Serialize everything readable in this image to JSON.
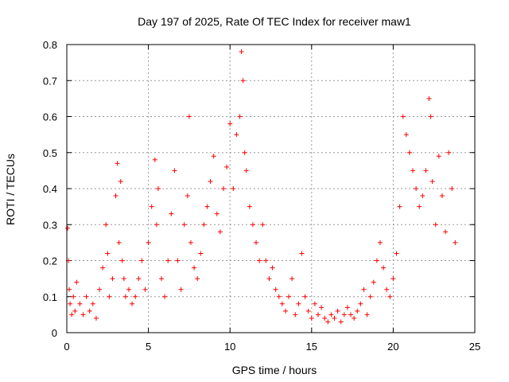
{
  "chart_data": {
    "type": "scatter",
    "title": "Day 197 of 2025, Rate Of TEC Index for receiver maw1",
    "xlabel": "GPS time / hours",
    "ylabel": "ROTI / TECUs",
    "xlim": [
      0,
      25
    ],
    "ylim": [
      0,
      0.8
    ],
    "x_ticks": [
      "0",
      "5",
      "10",
      "15",
      "20",
      "25"
    ],
    "y_ticks": [
      "0",
      "0.1",
      "0.2",
      "0.3",
      "0.4",
      "0.5",
      "0.6",
      "0.7",
      "0.8"
    ],
    "grid": true,
    "marker": "+",
    "color": "#ff0000",
    "series": [
      {
        "x": [
          0.05,
          0.1,
          0.15,
          0.2,
          0.3,
          0.4,
          0.5,
          0.6,
          0.8,
          1.0,
          1.2,
          1.4,
          1.6,
          1.8,
          2.0,
          2.2,
          2.4,
          2.5,
          2.6,
          2.8,
          3.0,
          3.1,
          3.2,
          3.3,
          3.4,
          3.5,
          3.6,
          3.8,
          4.0,
          4.2,
          4.4,
          4.6,
          4.8,
          5.0,
          5.2,
          5.4,
          5.5,
          5.6,
          5.8,
          6.0,
          6.2,
          6.4,
          6.6,
          6.8,
          7.0,
          7.2,
          7.4,
          7.5,
          7.6,
          7.8,
          8.0,
          8.2,
          8.4,
          8.6,
          8.8,
          9.0,
          9.2,
          9.4,
          9.6,
          9.8,
          10.0,
          10.2,
          10.4,
          10.6,
          10.7,
          10.8,
          10.9,
          11.0,
          11.2,
          11.4,
          11.6,
          11.8,
          12.0,
          12.2,
          12.4,
          12.6,
          12.8,
          13.0,
          13.2,
          13.4,
          13.6,
          13.8,
          14.0,
          14.2,
          14.4,
          14.6,
          14.8,
          15.0,
          15.2,
          15.4,
          15.6,
          15.8,
          16.0,
          16.2,
          16.4,
          16.6,
          16.8,
          17.0,
          17.2,
          17.4,
          17.6,
          17.8,
          18.0,
          18.2,
          18.4,
          18.6,
          18.8,
          19.0,
          19.2,
          19.4,
          19.6,
          19.8,
          20.0,
          20.2,
          20.4,
          20.6,
          20.8,
          21.0,
          21.2,
          21.4,
          21.6,
          21.8,
          22.0,
          22.2,
          22.3,
          22.4,
          22.6,
          22.8,
          23.0,
          23.2,
          23.4,
          23.6,
          23.8
        ],
        "y": [
          0.29,
          0.2,
          0.12,
          0.08,
          0.05,
          0.1,
          0.06,
          0.14,
          0.08,
          0.05,
          0.1,
          0.06,
          0.08,
          0.04,
          0.12,
          0.18,
          0.3,
          0.22,
          0.1,
          0.15,
          0.38,
          0.47,
          0.25,
          0.42,
          0.2,
          0.15,
          0.1,
          0.12,
          0.08,
          0.1,
          0.15,
          0.2,
          0.12,
          0.25,
          0.35,
          0.48,
          0.3,
          0.4,
          0.15,
          0.1,
          0.2,
          0.33,
          0.45,
          0.2,
          0.12,
          0.3,
          0.38,
          0.6,
          0.25,
          0.18,
          0.15,
          0.22,
          0.3,
          0.35,
          0.42,
          0.49,
          0.33,
          0.28,
          0.4,
          0.46,
          0.58,
          0.4,
          0.55,
          0.6,
          0.78,
          0.7,
          0.5,
          0.45,
          0.35,
          0.3,
          0.25,
          0.2,
          0.3,
          0.2,
          0.15,
          0.18,
          0.12,
          0.1,
          0.08,
          0.06,
          0.1,
          0.15,
          0.05,
          0.08,
          0.22,
          0.1,
          0.06,
          0.04,
          0.08,
          0.05,
          0.07,
          0.04,
          0.03,
          0.05,
          0.04,
          0.06,
          0.03,
          0.05,
          0.07,
          0.05,
          0.04,
          0.06,
          0.08,
          0.12,
          0.05,
          0.1,
          0.14,
          0.2,
          0.25,
          0.18,
          0.12,
          0.1,
          0.15,
          0.22,
          0.35,
          0.6,
          0.55,
          0.5,
          0.45,
          0.4,
          0.35,
          0.38,
          0.45,
          0.65,
          0.6,
          0.42,
          0.3,
          0.49,
          0.38,
          0.28,
          0.5,
          0.4,
          0.25
        ]
      }
    ]
  }
}
